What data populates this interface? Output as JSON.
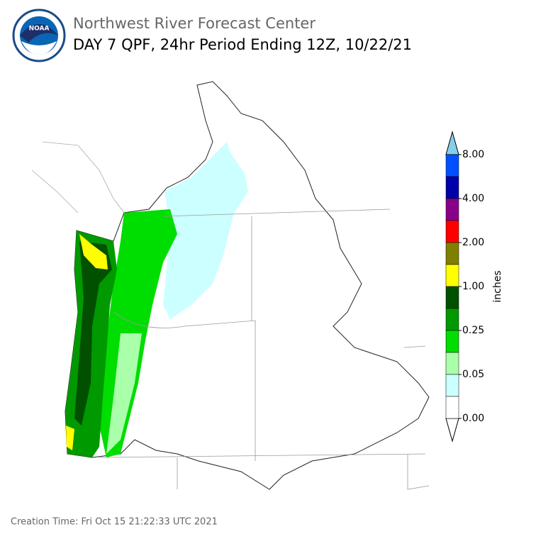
{
  "header": {
    "agency": "NOAA",
    "title": "Northwest River Forecast Center",
    "subtitle": "DAY 7 QPF, 24hr Period Ending 12Z, 10/22/21"
  },
  "legend": {
    "unit": "inches",
    "over_color": "#87ceeb",
    "under_color": "#ffffff",
    "colors": [
      "#0050ff",
      "#0000aa",
      "#880088",
      "#ff0000",
      "#808000",
      "#ffff00",
      "#005000",
      "#009900",
      "#00dd00",
      "#aaffaa",
      "#ccffff",
      "#ffffff"
    ],
    "labels": [
      "8.00",
      "4.00",
      "2.00",
      "1.00",
      "0.25",
      "0.05",
      "0.00"
    ]
  },
  "footer": {
    "creation_time": "Creation Time: Fri Oct 15 21:22:33 UTC 2021"
  }
}
